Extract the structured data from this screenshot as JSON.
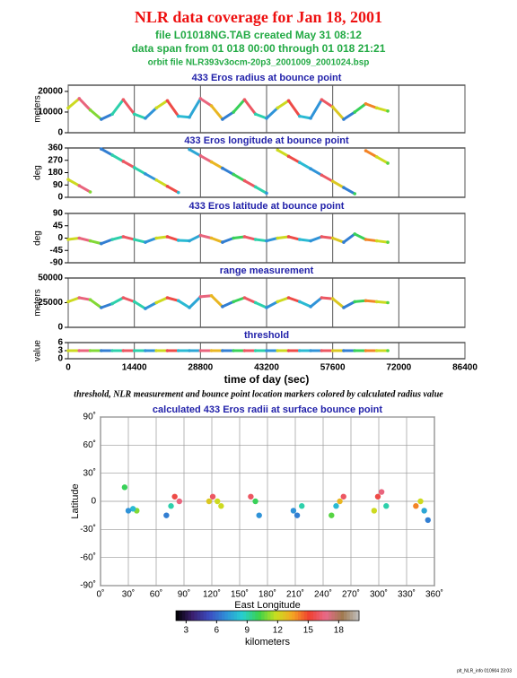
{
  "header": {
    "title": "NLR data coverage for Jan 18, 2001",
    "lines": [
      "file L01018NG.TAB created May 31 08:12",
      "data span from 01 018 00:00 through 01 018 21:21",
      "orbit file NLR393v3ocm-20p3_2001009_2001024.bsp"
    ]
  },
  "caption": "threshold, NLR measurement and bounce point location markers colored by calculated radius value",
  "footer": "plt_NLR_info 010904 23:03",
  "chart_data": [
    {
      "type": "line",
      "title": "433 Eros radius at bounce point",
      "ylabel": "meters",
      "x": [
        0,
        2400,
        4800,
        7200,
        9600,
        12000,
        14400,
        16800,
        19200,
        21600,
        24000,
        26400,
        28800,
        31200,
        33600,
        36000,
        38400,
        40800,
        43200,
        45600,
        48000,
        50400,
        52800,
        55200,
        57600,
        60000,
        62400,
        64800,
        67200,
        69600
      ],
      "values": [
        12000,
        16500,
        11000,
        6500,
        9000,
        16000,
        9000,
        7000,
        12000,
        15500,
        8000,
        7500,
        16500,
        13000,
        6500,
        10000,
        16000,
        9000,
        7000,
        12000,
        15500,
        8000,
        7000,
        16000,
        12500,
        6500,
        10000,
        14000,
        12000,
        10500
      ],
      "ylim": [
        0,
        23000
      ],
      "yticks": [
        0,
        10000,
        20000
      ]
    },
    {
      "type": "line",
      "title": "433 Eros longitude at bounce point",
      "ylabel": "deg",
      "values": [
        130,
        85,
        39,
        353,
        308,
        262,
        217,
        171,
        126,
        80,
        35,
        349,
        303,
        258,
        212,
        167,
        121,
        76,
        30,
        345,
        299,
        254,
        208,
        162,
        117,
        71,
        26,
        340,
        295,
        249
      ],
      "ylim": [
        0,
        360
      ],
      "yticks": [
        0,
        90,
        180,
        270,
        360
      ]
    },
    {
      "type": "line",
      "title": "433 Eros latitude at bounce point",
      "ylabel": "deg",
      "values": [
        -5,
        0,
        -10,
        -20,
        -5,
        5,
        -5,
        -15,
        0,
        5,
        -8,
        -10,
        10,
        0,
        -15,
        0,
        5,
        -5,
        -10,
        0,
        5,
        -5,
        -10,
        5,
        0,
        -15,
        15,
        -5,
        -10,
        -15
      ],
      "ylim": [
        -90,
        90
      ],
      "yticks": [
        -90,
        -45,
        0,
        45,
        90
      ]
    },
    {
      "type": "line",
      "title": "range measurement",
      "ylabel": "meters",
      "values": [
        26000,
        30000,
        28000,
        20000,
        24000,
        30000,
        26000,
        19000,
        25000,
        30000,
        27000,
        20000,
        31000,
        32000,
        21000,
        26000,
        30000,
        25000,
        20000,
        26000,
        30000,
        26000,
        21000,
        30000,
        29000,
        20000,
        26000,
        27000,
        26000,
        25000
      ],
      "ylim": [
        0,
        50000
      ],
      "yticks": [
        0,
        25000,
        50000
      ]
    },
    {
      "type": "line",
      "title": "threshold",
      "ylabel": "value",
      "values": [
        3,
        3,
        3,
        3,
        3,
        3,
        3,
        3,
        3,
        3,
        3,
        3,
        3,
        3,
        3,
        3,
        3,
        3,
        3,
        3,
        3,
        3,
        3,
        3,
        3,
        3,
        3,
        3,
        3,
        3
      ],
      "ylim": [
        0,
        6
      ],
      "yticks": [
        0,
        3,
        6
      ],
      "xlabel": "time of day (sec)",
      "xlim": [
        0,
        86400
      ],
      "xticks": [
        0,
        14400,
        28800,
        43200,
        57600,
        72000,
        86400
      ]
    },
    {
      "type": "scatter",
      "title": "calculated 433 Eros radii at surface bounce point",
      "xlabel": "East Longitude",
      "ylabel": "Latitude",
      "grid": true,
      "xlim": [
        0,
        360
      ],
      "xticks": [
        {
          "value": 0,
          "label": "0˚"
        },
        {
          "value": 30,
          "label": "30˚"
        },
        {
          "value": 60,
          "label": "60˚"
        },
        {
          "value": 90,
          "label": "90˚"
        },
        {
          "value": 120,
          "label": "120˚"
        },
        {
          "value": 150,
          "label": "150˚"
        },
        {
          "value": 180,
          "label": "180˚"
        },
        {
          "value": 210,
          "label": "210˚"
        },
        {
          "value": 240,
          "label": "240˚"
        },
        {
          "value": 270,
          "label": "270˚"
        },
        {
          "value": 300,
          "label": "300˚"
        },
        {
          "value": 330,
          "label": "330˚"
        },
        {
          "value": 360,
          "label": "360˚"
        }
      ],
      "ylim": [
        -90,
        90
      ],
      "yticks": [
        {
          "value": -90,
          "label": "-90˚"
        },
        {
          "value": -60,
          "label": "-60˚"
        },
        {
          "value": -30,
          "label": "-30˚"
        },
        {
          "value": 0,
          "label": "0"
        },
        {
          "value": 30,
          "label": "30˚"
        },
        {
          "value": 60,
          "label": "60˚"
        },
        {
          "value": 90,
          "label": "90˚"
        }
      ],
      "colorbar": {
        "label": "kilometers",
        "lim": [
          2000,
          20000
        ],
        "ticks": [
          {
            "value": 3000,
            "label": "3"
          },
          {
            "value": 6000,
            "label": "6"
          },
          {
            "value": 9000,
            "label": "9"
          },
          {
            "value": 12000,
            "label": "12"
          },
          {
            "value": 15000,
            "label": "15"
          },
          {
            "value": 18000,
            "label": "18"
          }
        ],
        "colors": [
          "#000000",
          "#3a1f6e",
          "#3b4cc0",
          "#2f8fd8",
          "#27d0d0",
          "#3bd14a",
          "#c8e020",
          "#f5a623",
          "#f04030",
          "#e86a8a",
          "#a07a50",
          "#c0c0c0"
        ]
      }
    }
  ]
}
